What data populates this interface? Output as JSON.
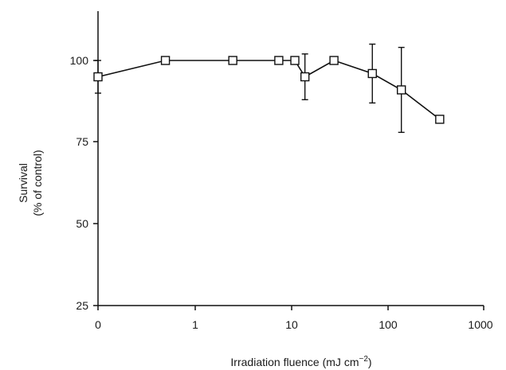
{
  "chart_data": {
    "type": "line",
    "xlabel": "Irradiation fluence (mJ cm",
    "xlabel_sup": "−2",
    "xlabel_close": ")",
    "ylabel_line1": "Survival",
    "ylabel_line2": "(% of control)",
    "xscale": "log (0 shown at origin)",
    "x_tick_labels": [
      "0",
      "1",
      "10",
      "100",
      "1000"
    ],
    "y_tick_labels": [
      "25",
      "50",
      "75",
      "100"
    ],
    "ylim": [
      25,
      115
    ],
    "grid": false,
    "legend": "none",
    "marker": "open-square",
    "series": [
      {
        "x": [
          0,
          0.5,
          2.5,
          7.5,
          11,
          14,
          28,
          70,
          140,
          350
        ],
        "y": [
          95,
          100,
          100,
          100,
          100,
          95,
          100,
          96,
          91,
          82
        ],
        "error": [
          5,
          null,
          null,
          null,
          null,
          7,
          null,
          9,
          13,
          null
        ]
      }
    ]
  }
}
